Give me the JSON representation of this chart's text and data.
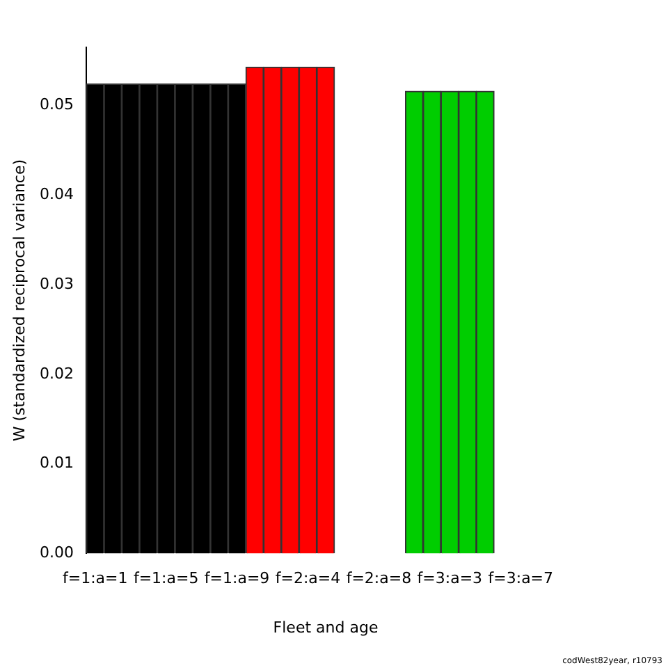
{
  "chart_data": {
    "type": "bar",
    "xlabel": "Fleet and age",
    "ylabel": "W (standardized reciprocal variance)",
    "categories": [
      "f=1:a=1",
      null,
      null,
      null,
      "f=1:a=5",
      null,
      null,
      null,
      "f=1:a=9",
      null,
      null,
      null,
      "f=2:a=4",
      null,
      null,
      null,
      "f=2:a=8",
      null,
      null,
      null,
      "f=3:a=3",
      null,
      null,
      null,
      "f=3:a=7",
      null,
      null
    ],
    "values": [
      0.0524,
      0.0524,
      0.0524,
      0.0524,
      0.0524,
      0.0524,
      0.0524,
      0.0524,
      0.0524,
      0.0543,
      0.0543,
      0.0543,
      0.0543,
      0.0543,
      null,
      null,
      null,
      null,
      0.0516,
      0.0516,
      0.0516,
      0.0516,
      0.0516,
      null,
      null,
      null,
      null
    ],
    "colors": [
      "#000000",
      "#000000",
      "#000000",
      "#000000",
      "#000000",
      "#000000",
      "#000000",
      "#000000",
      "#000000",
      "#ff0000",
      "#ff0000",
      "#ff0000",
      "#ff0000",
      "#ff0000",
      "#ff0000",
      "#ff0000",
      "#ff0000",
      "#ff0000",
      "#00cd00",
      "#00cd00",
      "#00cd00",
      "#00cd00",
      "#00cd00",
      "#00cd00",
      "#00cd00",
      "#00cd00",
      "#00cd00"
    ],
    "ylim": [
      0,
      0.0565
    ],
    "yticks": [
      {
        "value": 0,
        "label": "0.00"
      },
      {
        "value": 0.01,
        "label": "0.01"
      },
      {
        "value": 0.02,
        "label": "0.02"
      },
      {
        "value": 0.03,
        "label": "0.03"
      },
      {
        "value": 0.04,
        "label": "0.04"
      },
      {
        "value": 0.05,
        "label": "0.05"
      }
    ],
    "grid": false,
    "annotations": [
      "codWest82year, r10793"
    ]
  }
}
